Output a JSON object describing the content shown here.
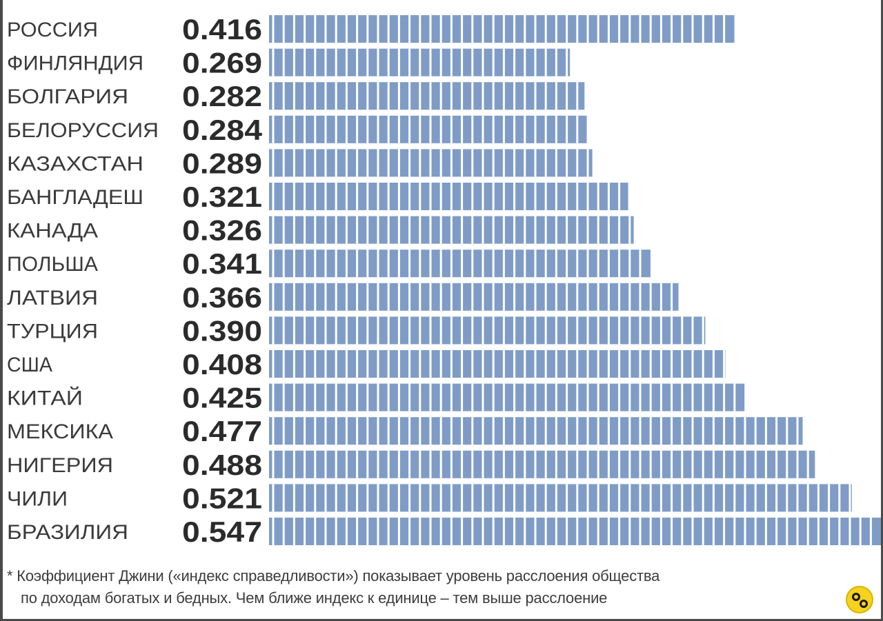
{
  "chart_data": {
    "type": "bar",
    "orientation": "horizontal",
    "categories": [
      "РОССИЯ",
      "ФИНЛЯНДИЯ",
      "БОЛГАРИЯ",
      "БЕЛОРУССИЯ",
      "КАЗАХСТАН",
      "БАНГЛАДЕШ",
      "КАНАДА",
      "ПОЛЬША",
      "ЛАТВИЯ",
      "ТУРЦИЯ",
      "США",
      "КИТАЙ",
      "МЕКСИКА",
      "НИГЕРИЯ",
      "ЧИЛИ",
      "БРАЗИЛИЯ"
    ],
    "values": [
      0.416,
      0.269,
      0.282,
      0.284,
      0.289,
      0.321,
      0.326,
      0.341,
      0.366,
      0.39,
      0.408,
      0.425,
      0.477,
      0.488,
      0.521,
      0.547
    ],
    "value_labels": [
      "0.416",
      "0.269",
      "0.282",
      "0.284",
      "0.289",
      "0.321",
      "0.326",
      "0.341",
      "0.366",
      "0.390",
      "0.408",
      "0.425",
      "0.477",
      "0.488",
      "0.521",
      "0.547"
    ],
    "xlim": [
      0,
      0.547
    ],
    "grid": false,
    "legend": "none",
    "bar_color": "#7f9cc6",
    "segment_line_color": "#ffffff"
  },
  "footnote": {
    "line1": "* Коэффициент Джини («индекс справедливости») показывает уровень расслоения общества",
    "line2": "по доходам богатых и бедных.  Чем ближе индекс к единице – тем выше расслоение"
  },
  "logo": {
    "icon": "cancer-zodiac-icon",
    "color": "#f5d21c"
  }
}
